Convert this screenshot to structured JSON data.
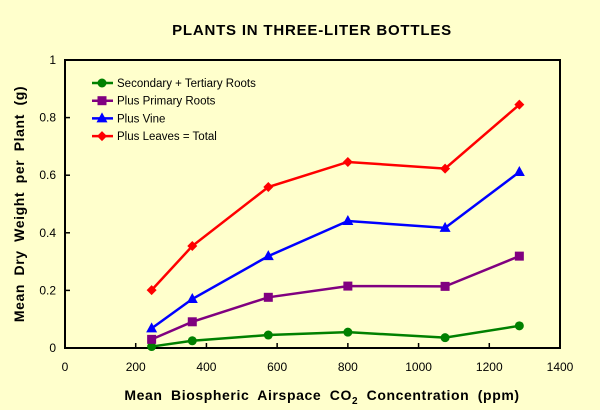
{
  "chart_data": {
    "type": "line",
    "title": "PLANTS IN THREE-LITER BOTTLES",
    "xlabel_parts": [
      "Mean Biospheric Airspace CO",
      "2",
      " Concentration (ppm)"
    ],
    "ylabel": "Mean Dry Weight per Plant (g)",
    "xlim": [
      0,
      1400
    ],
    "ylim": [
      0,
      1
    ],
    "xticks": [
      0,
      200,
      400,
      600,
      800,
      1000,
      1200,
      1400
    ],
    "yticks": [
      0,
      0.2,
      0.4,
      0.6,
      0.8,
      1
    ],
    "ytick_labels": [
      "0",
      "0.2",
      "0.4",
      "0.6",
      "0.8",
      "1"
    ],
    "grid": false,
    "legend_position": "top-left",
    "x": [
      245,
      360,
      575,
      800,
      1075,
      1285
    ],
    "series": [
      {
        "name": "Secondary + Tertiary Roots",
        "color": "#008000",
        "marker": "circle",
        "values": [
          0.005,
          0.025,
          0.045,
          0.055,
          0.036,
          0.077
        ]
      },
      {
        "name": "Plus Primary Roots",
        "color": "#800080",
        "marker": "square",
        "values": [
          0.03,
          0.091,
          0.176,
          0.215,
          0.214,
          0.319
        ]
      },
      {
        "name": "Plus Vine",
        "color": "#0000ff",
        "marker": "triangle",
        "values": [
          0.068,
          0.17,
          0.319,
          0.441,
          0.417,
          0.611
        ]
      },
      {
        "name": "Plus Leaves = Total",
        "color": "#ff0000",
        "marker": "diamond",
        "values": [
          0.201,
          0.354,
          0.559,
          0.646,
          0.623,
          0.845
        ]
      }
    ]
  }
}
